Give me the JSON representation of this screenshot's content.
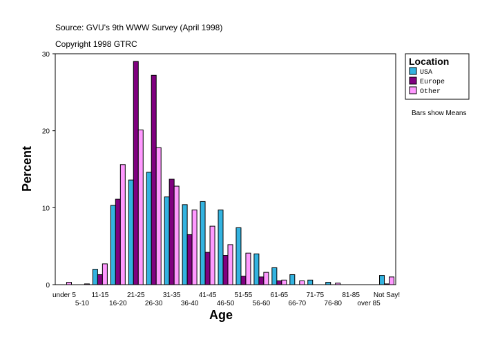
{
  "chart_data": {
    "type": "bar",
    "source": "Source: GVU's 9th WWW Survey (April 1998)",
    "copyright": "Copyright 1998 GTRC",
    "xlabel": "Age",
    "ylabel": "Percent",
    "ylim": [
      0,
      30
    ],
    "yticks": [
      0,
      10,
      20,
      30
    ],
    "legend_title": "Location",
    "legend_position": "right",
    "note": "Bars show Means",
    "categories": [
      "under 5",
      "5-10",
      "11-15",
      "16-20",
      "21-25",
      "26-30",
      "31-35",
      "36-40",
      "41-45",
      "46-50",
      "51-55",
      "56-60",
      "61-65",
      "66-70",
      "71-75",
      "76-80",
      "81-85",
      "over 85",
      "Not Say!"
    ],
    "series": [
      {
        "name": "USA",
        "color": "#33b3e0",
        "values": [
          0.0,
          0.0,
          2.0,
          10.3,
          13.6,
          14.6,
          11.4,
          10.4,
          10.8,
          9.7,
          7.4,
          4.0,
          2.2,
          1.3,
          0.6,
          0.3,
          0.0,
          0.0,
          1.2
        ]
      },
      {
        "name": "Europe",
        "color": "#800080",
        "values": [
          0.0,
          0.0,
          1.3,
          11.1,
          29.0,
          27.2,
          13.7,
          6.5,
          4.2,
          3.8,
          1.1,
          1.0,
          0.5,
          0.0,
          0.0,
          0.0,
          0.0,
          0.0,
          0.1
        ]
      },
      {
        "name": "Other",
        "color": "#ff99ff",
        "values": [
          0.3,
          0.1,
          2.7,
          15.6,
          20.1,
          17.8,
          12.8,
          9.7,
          7.6,
          5.2,
          4.1,
          1.6,
          0.6,
          0.5,
          0.0,
          0.2,
          0.0,
          0.0,
          1.0
        ]
      }
    ]
  }
}
